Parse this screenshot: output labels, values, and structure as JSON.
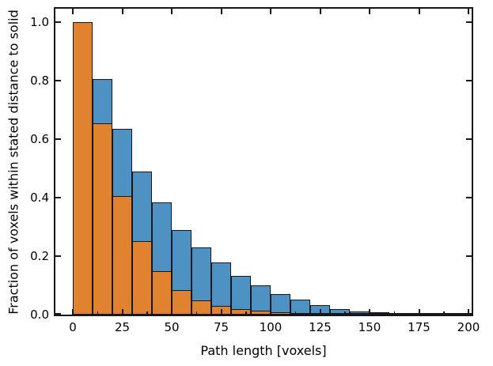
{
  "chart_data": {
    "type": "bar",
    "subtype": "overlaid-histograms",
    "title": "",
    "xlabel": "Path length [voxels]",
    "ylabel": "Fraction of voxels within stated distance to solid",
    "bin_width": 10,
    "bin_start": 0,
    "bin_starts": [
      0,
      10,
      20,
      30,
      40,
      50,
      60,
      70,
      80,
      90,
      100,
      110,
      120,
      130,
      140,
      150,
      160,
      170,
      180,
      190
    ],
    "series": [
      {
        "name": "blue-histogram",
        "color": "#4D92C3",
        "values": [
          1.0,
          0.805,
          0.635,
          0.49,
          0.385,
          0.29,
          0.23,
          0.178,
          0.133,
          0.1,
          0.07,
          0.05,
          0.032,
          0.02,
          0.012,
          0.007,
          0.004,
          0.0025,
          0.0015,
          0.0005
        ]
      },
      {
        "name": "orange-histogram",
        "color": "#E0822F",
        "values": [
          1.0,
          0.655,
          0.405,
          0.25,
          0.148,
          0.085,
          0.049,
          0.031,
          0.02,
          0.013,
          0.009,
          0.006,
          0.003,
          0.002,
          0.001,
          0.0005,
          0,
          0,
          0,
          0
        ]
      }
    ],
    "x_tick_labels": [
      "0",
      "25",
      "50",
      "75",
      "100",
      "125",
      "150",
      "175",
      "200"
    ],
    "x_tick_values": [
      0,
      25,
      50,
      75,
      100,
      125,
      150,
      175,
      200
    ],
    "x_minor_tick_values": [
      12.5,
      37.5,
      62.5,
      87.5,
      112.5,
      137.5,
      162.5,
      187.5
    ],
    "y_tick_labels": [
      "0.0",
      "0.2",
      "0.4",
      "0.6",
      "0.8",
      "1.0"
    ],
    "y_tick_values": [
      0,
      0.2,
      0.4,
      0.6,
      0.8,
      1.0
    ],
    "xlim": [
      -9.5,
      202.5
    ],
    "ylim": [
      0,
      1.046
    ],
    "grid": false,
    "legend": null
  },
  "colors": {
    "bar_edge": "#17171d",
    "blue_fill": "#4D92C3",
    "orange_fill": "#E0822F",
    "text": "#000000",
    "background": "#ffffff"
  }
}
